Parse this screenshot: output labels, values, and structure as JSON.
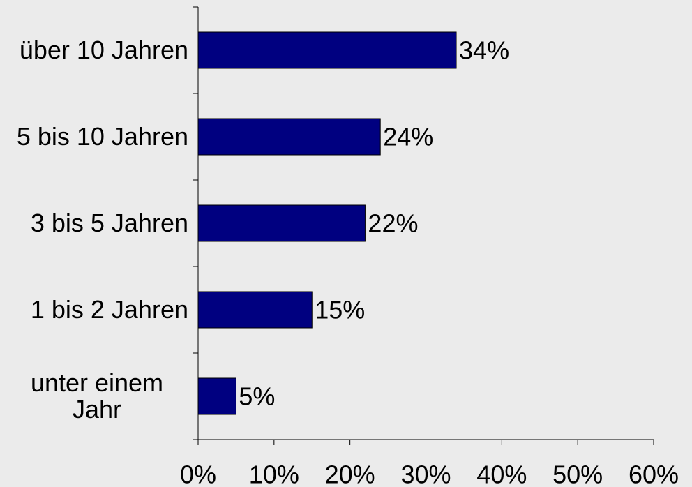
{
  "chart_data": {
    "type": "bar",
    "orientation": "horizontal",
    "categories": [
      "über 10 Jahren",
      "5 bis 10 Jahren",
      "3 bis 5 Jahren",
      "1 bis 2 Jahren",
      "unter einem Jahr"
    ],
    "values": [
      34,
      24,
      22,
      15,
      5
    ],
    "value_labels": [
      "34%",
      "24%",
      "22%",
      "15%",
      "5%"
    ],
    "color": "#000080",
    "xlim": [
      0,
      60
    ],
    "xticks": [
      {
        "value": 0,
        "label": "0%"
      },
      {
        "value": 10,
        "label": "10%"
      },
      {
        "value": 20,
        "label": "20%"
      },
      {
        "value": 30,
        "label": "30%"
      },
      {
        "value": 40,
        "label": "40%"
      },
      {
        "value": 50,
        "label": "50%"
      },
      {
        "value": 60,
        "label": "60%"
      }
    ],
    "grid": false
  }
}
